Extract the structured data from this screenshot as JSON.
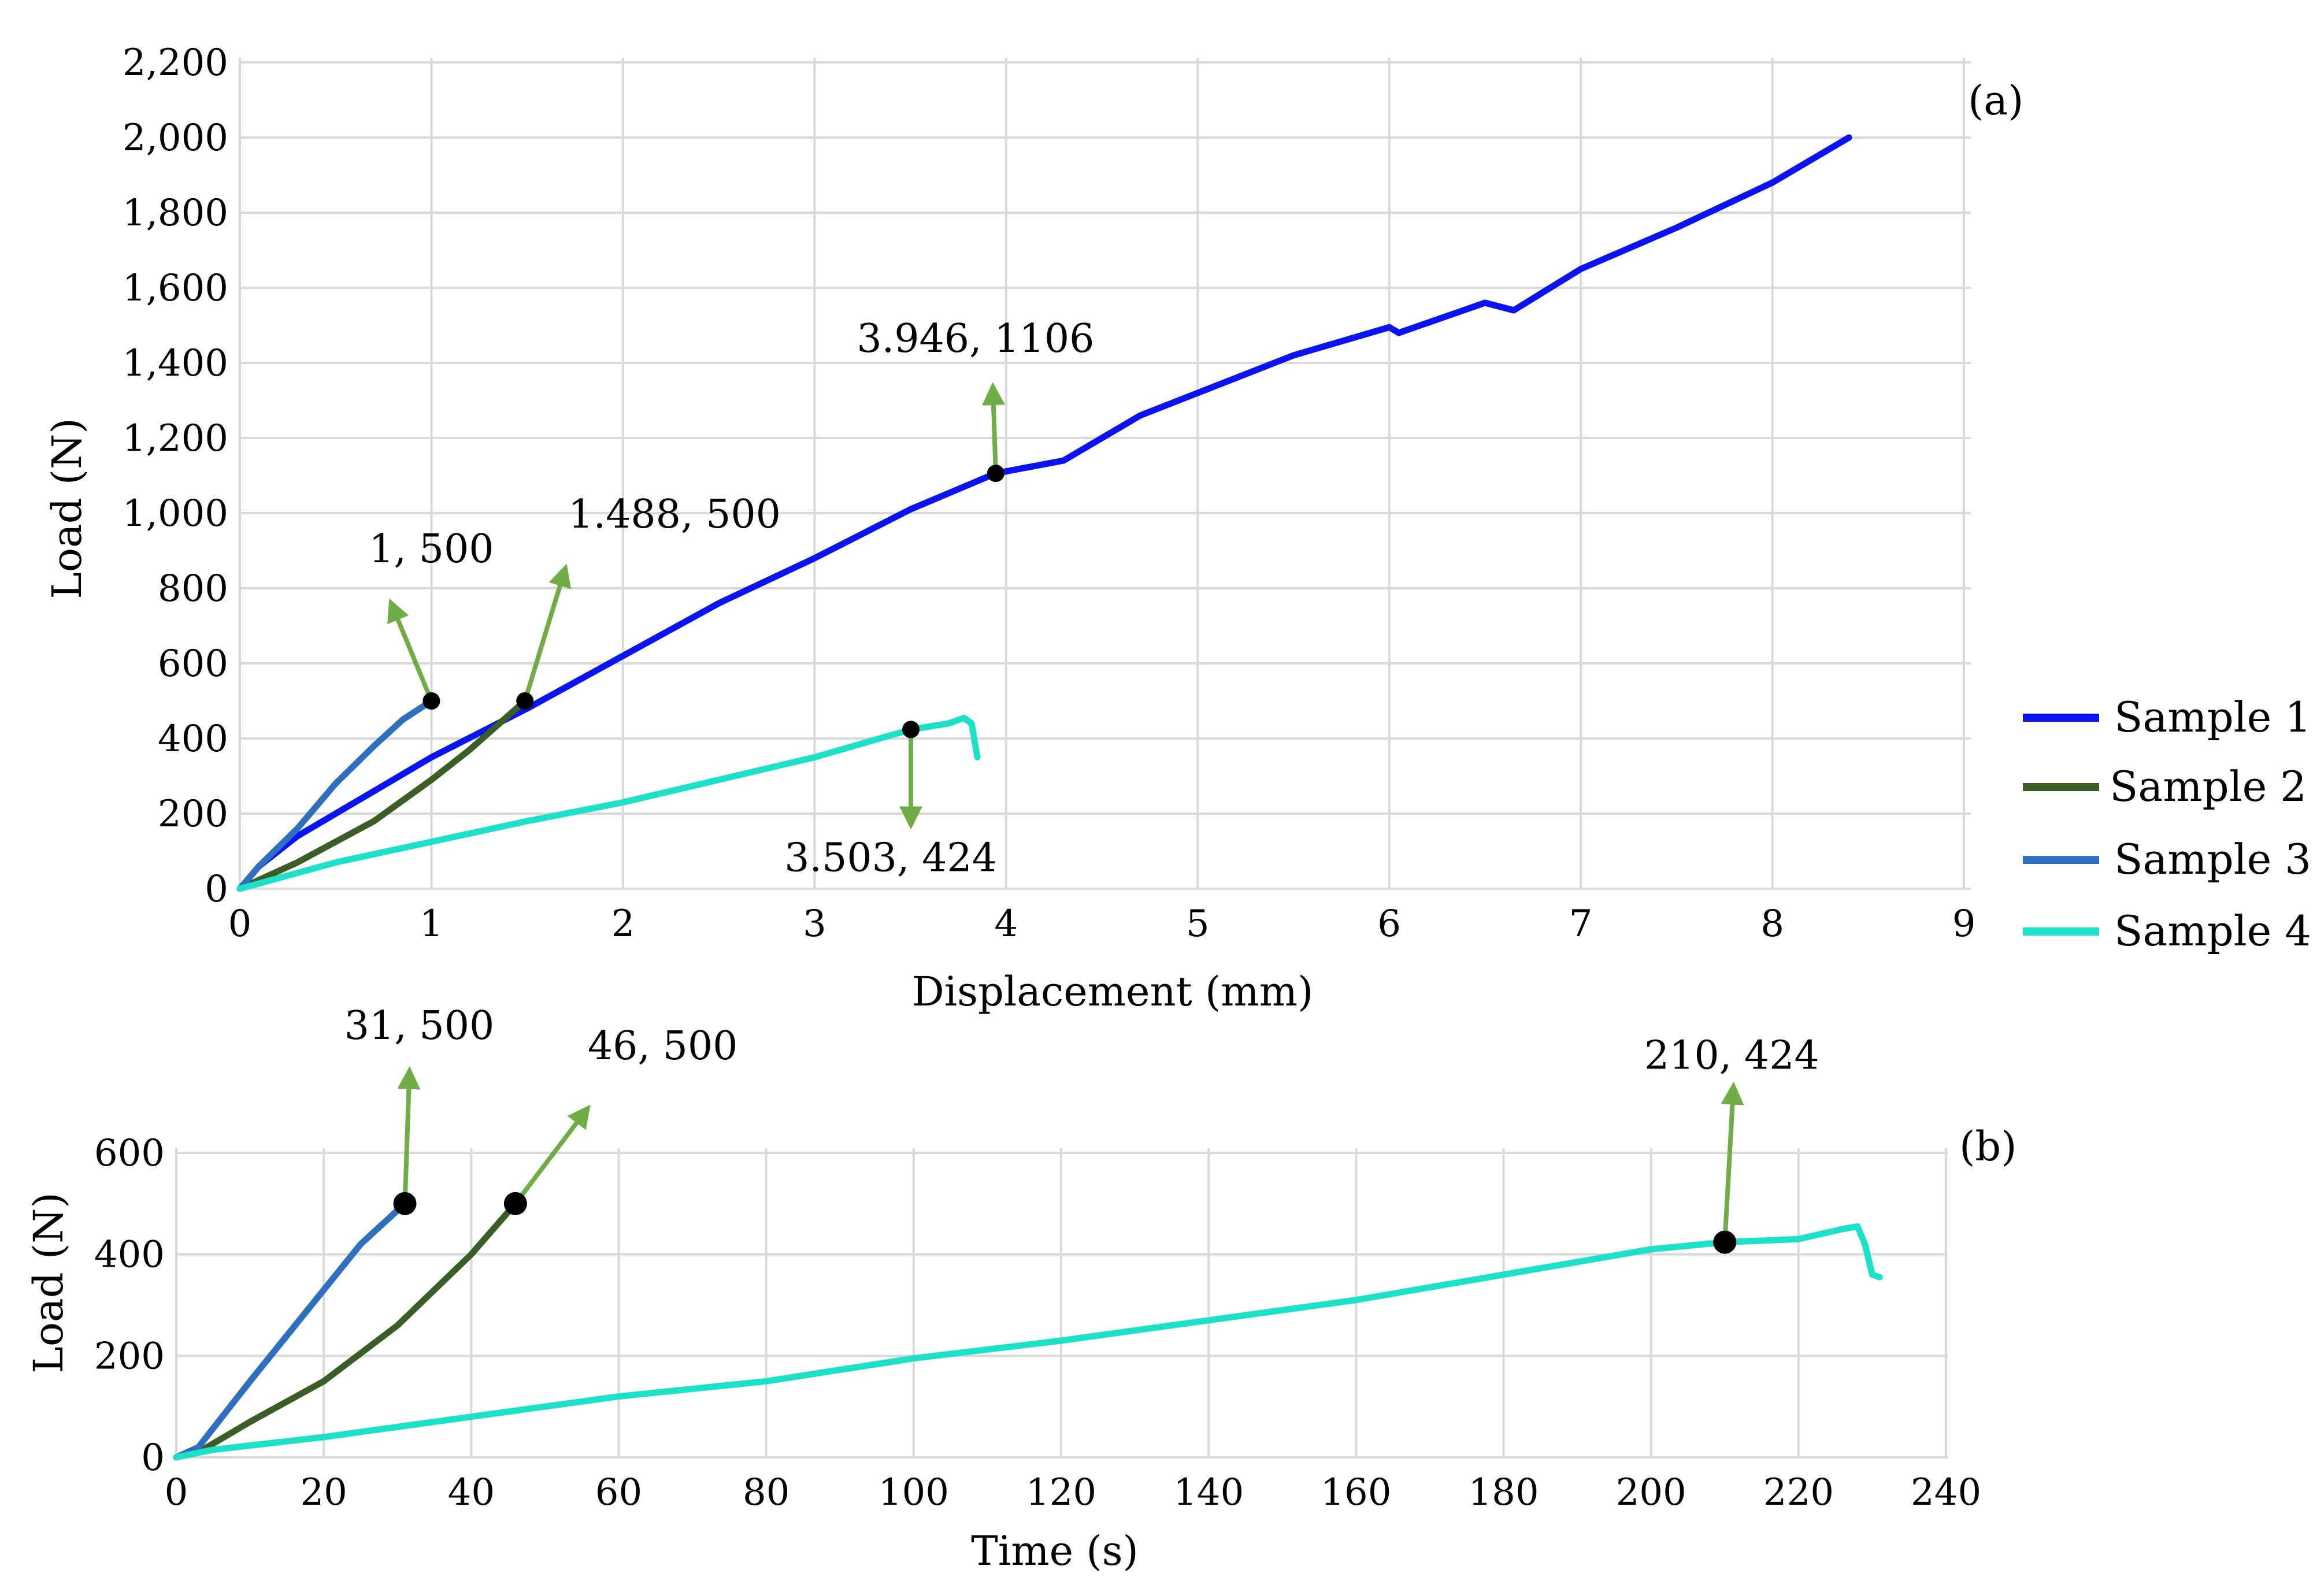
{
  "chart_data": [
    {
      "type": "line",
      "panel_label": "(a)",
      "xlabel": "Displacement (mm)",
      "ylabel": "Load (N)",
      "xlim": [
        0,
        9
      ],
      "ylim": [
        0,
        2200
      ],
      "x_ticks": [
        0,
        1,
        2,
        3,
        4,
        5,
        6,
        7,
        8,
        9
      ],
      "y_ticks": [
        0,
        200,
        400,
        600,
        800,
        1000,
        1200,
        1400,
        1600,
        1800,
        2000,
        2200
      ],
      "x_tick_labels": [
        "0",
        "1",
        "2",
        "3",
        "4",
        "5",
        "6",
        "7",
        "8",
        "9"
      ],
      "y_tick_labels": [
        "0",
        "200",
        "400",
        "600",
        "800",
        "1,000",
        "1,200",
        "1,400",
        "1,600",
        "1,800",
        "2,000",
        "2,200"
      ],
      "grid": true,
      "series": [
        {
          "name": "Sample 1",
          "color": "#0a14f0",
          "x": [
            0,
            0.1,
            0.3,
            0.6,
            1.0,
            1.5,
            2.0,
            2.5,
            3.0,
            3.5,
            3.946,
            4.3,
            4.7,
            5.0,
            5.5,
            6.0,
            6.05,
            6.5,
            6.65,
            7.0,
            7.5,
            8.0,
            8.4
          ],
          "y": [
            0,
            60,
            140,
            230,
            350,
            480,
            620,
            760,
            880,
            1010,
            1106,
            1140,
            1260,
            1320,
            1420,
            1495,
            1480,
            1560,
            1540,
            1650,
            1760,
            1880,
            2000
          ]
        },
        {
          "name": "Sample 2",
          "color": "#3a5e25",
          "x": [
            0,
            0.3,
            0.7,
            1.0,
            1.2,
            1.488
          ],
          "y": [
            0,
            70,
            180,
            290,
            370,
            500
          ]
        },
        {
          "name": "Sample 3",
          "color": "#2e6fc0",
          "x": [
            0,
            0.1,
            0.3,
            0.5,
            0.7,
            0.85,
            1.0
          ],
          "y": [
            0,
            60,
            160,
            280,
            380,
            450,
            500
          ]
        },
        {
          "name": "Sample 4",
          "color": "#1de0c8",
          "x": [
            0,
            0.5,
            1.0,
            1.5,
            2.0,
            2.5,
            3.0,
            3.503,
            3.7,
            3.78,
            3.82,
            3.85
          ],
          "y": [
            0,
            70,
            125,
            180,
            230,
            290,
            350,
            424,
            440,
            455,
            440,
            350
          ]
        }
      ],
      "annotations": [
        {
          "text": "1, 500",
          "x": 1.0,
          "y": 500,
          "series": "Sample 3",
          "arrow": "up"
        },
        {
          "text": "1.488, 500",
          "x": 1.488,
          "y": 500,
          "series": "Sample 2",
          "arrow": "up-right"
        },
        {
          "text": "3.946, 1106",
          "x": 3.946,
          "y": 1106,
          "series": "Sample 1",
          "arrow": "up"
        },
        {
          "text": "3.503, 424",
          "x": 3.503,
          "y": 424,
          "series": "Sample 4",
          "arrow": "down"
        }
      ],
      "legend": {
        "placement": "right",
        "items": [
          "Sample 1",
          "Sample 2",
          "Sample 3",
          "Sample 4"
        ]
      }
    },
    {
      "type": "line",
      "panel_label": "(b)",
      "xlabel": "Time (s)",
      "ylabel": "Load (N)",
      "xlim": [
        0,
        240
      ],
      "ylim": [
        0,
        600
      ],
      "x_ticks": [
        0,
        20,
        40,
        60,
        80,
        100,
        120,
        140,
        160,
        180,
        200,
        220,
        240
      ],
      "y_ticks": [
        0,
        200,
        400,
        600
      ],
      "x_tick_labels": [
        "0",
        "20",
        "40",
        "60",
        "80",
        "100",
        "120",
        "140",
        "160",
        "180",
        "200",
        "220",
        "240"
      ],
      "y_tick_labels": [
        "0",
        "200",
        "400",
        "600"
      ],
      "grid": true,
      "series": [
        {
          "name": "Sample 2",
          "color": "#3a5e25",
          "x": [
            0,
            3,
            10,
            20,
            30,
            40,
            46
          ],
          "y": [
            0,
            10,
            70,
            150,
            260,
            400,
            500
          ]
        },
        {
          "name": "Sample 3",
          "color": "#2e6fc0",
          "x": [
            0,
            3,
            10,
            20,
            25,
            31
          ],
          "y": [
            0,
            20,
            150,
            330,
            420,
            500
          ]
        },
        {
          "name": "Sample 4",
          "color": "#1de0c8",
          "x": [
            0,
            5,
            20,
            40,
            60,
            80,
            100,
            120,
            140,
            160,
            180,
            200,
            210,
            220,
            226,
            228,
            229,
            230,
            231
          ],
          "y": [
            0,
            15,
            40,
            80,
            120,
            150,
            195,
            230,
            270,
            310,
            360,
            410,
            424,
            430,
            450,
            455,
            420,
            360,
            355
          ]
        }
      ],
      "annotations": [
        {
          "text": "31, 500",
          "x": 31,
          "y": 500,
          "series": "Sample 3",
          "arrow": "up"
        },
        {
          "text": "46, 500",
          "x": 46,
          "y": 500,
          "series": "Sample 2",
          "arrow": "up-right"
        },
        {
          "text": "210, 424",
          "x": 210,
          "y": 424,
          "series": "Sample 4",
          "arrow": "up"
        }
      ]
    }
  ]
}
